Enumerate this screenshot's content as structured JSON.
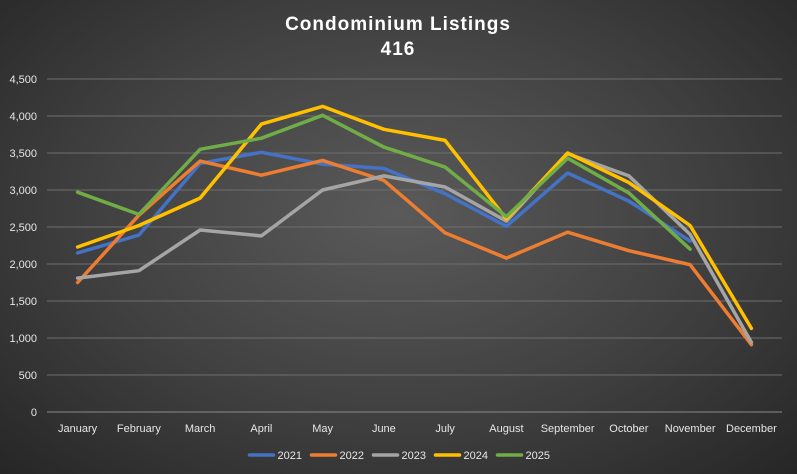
{
  "chart_data": {
    "type": "line",
    "title": "Condominium  Listings",
    "subtitle": "416",
    "xlabel": "",
    "ylabel": "",
    "categories": [
      "January",
      "February",
      "March",
      "April",
      "May",
      "June",
      "July",
      "August",
      "September",
      "October",
      "November",
      "December"
    ],
    "yticks": [
      "0",
      "500",
      "1,000",
      "1,500",
      "2,000",
      "2,500",
      "3,000",
      "3,500",
      "4,000",
      "4,500"
    ],
    "ylim": [
      0,
      4500
    ],
    "grid": true,
    "legend_position": "bottom",
    "series": [
      {
        "name": "2021",
        "color": "#4472c4",
        "values": [
          2150,
          2390,
          3360,
          3510,
          3350,
          3290,
          2950,
          2510,
          3230,
          2850,
          2310,
          null
        ]
      },
      {
        "name": "2022",
        "color": "#ed7d31",
        "values": [
          1750,
          2660,
          3390,
          3200,
          3400,
          3130,
          2420,
          2080,
          2430,
          2180,
          1990,
          910
        ]
      },
      {
        "name": "2023",
        "color": "#a5a5a5",
        "values": [
          1810,
          1910,
          2460,
          2380,
          3000,
          3190,
          3040,
          2580,
          3490,
          3190,
          2400,
          940
        ]
      },
      {
        "name": "2024",
        "color": "#ffc000",
        "values": [
          2230,
          2520,
          2890,
          3890,
          4130,
          3820,
          3670,
          2610,
          3500,
          3100,
          2520,
          1130
        ]
      },
      {
        "name": "2025",
        "color": "#70ad47",
        "values": [
          2970,
          2670,
          3550,
          3700,
          4010,
          3580,
          3310,
          2640,
          3430,
          2960,
          2200,
          null
        ]
      }
    ]
  }
}
